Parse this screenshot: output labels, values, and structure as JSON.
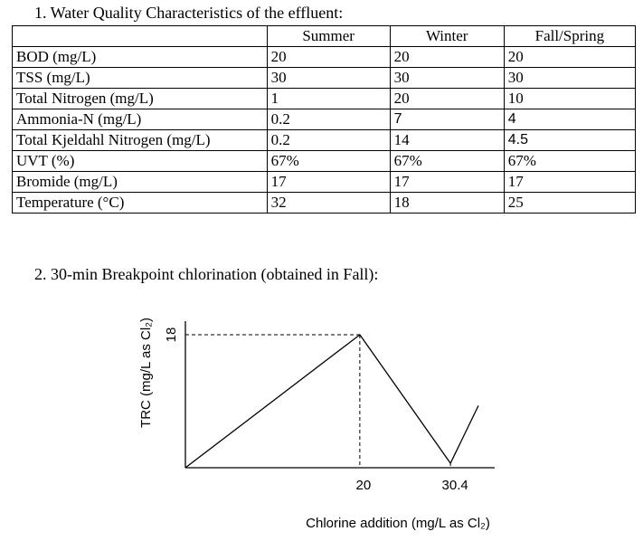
{
  "section1": {
    "heading": "1.  Water Quality Characteristics of the effluent:",
    "columns": [
      "Summer",
      "Winter",
      "Fall/Spring"
    ],
    "rows": [
      {
        "label": "BOD (mg/L)",
        "values": [
          "20",
          "20",
          "20"
        ]
      },
      {
        "label": "TSS (mg/L)",
        "values": [
          "30",
          "30",
          "30"
        ]
      },
      {
        "label": "Total Nitrogen (mg/L)",
        "values": [
          "1",
          "20",
          "10"
        ]
      },
      {
        "label": "Ammonia-N (mg/L)",
        "values": [
          "0.2",
          "7",
          "4"
        ]
      },
      {
        "label": "Total Kjeldahl Nitrogen (mg/L)",
        "values": [
          "0.2",
          "14",
          "4.5"
        ]
      },
      {
        "label": "UVT (%)",
        "values": [
          "67%",
          "67%",
          "67%"
        ]
      },
      {
        "label": "Bromide (mg/L)",
        "values": [
          "17",
          "17",
          "17"
        ]
      },
      {
        "label": "Temperature (°C)",
        "values": [
          "32",
          "18",
          "25"
        ]
      }
    ]
  },
  "section2": {
    "heading": "2.  30-min Breakpoint chlorination (obtained in Fall):"
  },
  "chart_data": {
    "type": "line",
    "title": "",
    "xlabel": "Chlorine addition (mg/L as Cl₂)",
    "ylabel": "TRC (mg/L as Cl₂)",
    "x_ticks": [
      "20",
      "30.4"
    ],
    "y_ticks": [
      "18"
    ],
    "xlim": [
      0,
      33.6
    ],
    "ylim": [
      0,
      18
    ],
    "grid": false,
    "series": [
      {
        "x": [
          0,
          20,
          30.4,
          33.6
        ],
        "y": [
          0,
          18,
          0.6,
          8.4
        ]
      }
    ]
  }
}
